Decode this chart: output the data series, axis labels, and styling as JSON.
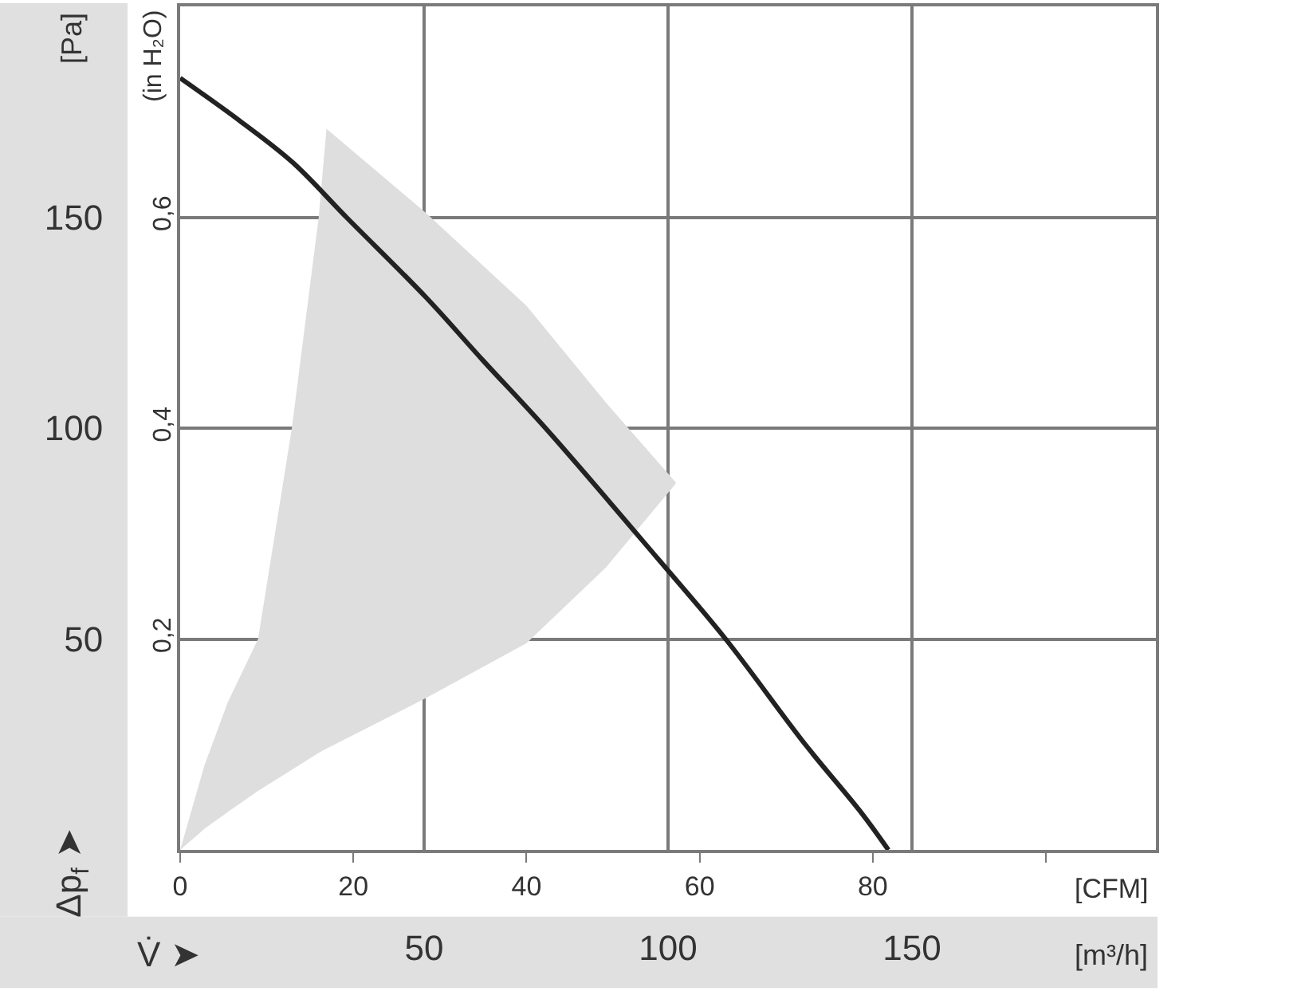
{
  "chart_data": {
    "type": "line",
    "xlabel": "[CFM]",
    "x2label": "[m³/h]",
    "ylabel": "[Pa]",
    "y2label": "(in H₂O)",
    "annotations": [
      "Δp$_{f}$ ➤",
      "V̇ ➤"
    ],
    "xlim": [
      0,
      112.7
    ],
    "xticks": [
      0,
      20,
      40,
      60,
      80,
      {
        "value": 100,
        "label": null
      }
    ],
    "x2lim": [
      0,
      200
    ],
    "x2ticks": [
      50,
      100,
      150
    ],
    "ylim": [
      0,
      200
    ],
    "yticks": [
      50,
      100,
      150
    ],
    "y2lim": [
      0,
      0.8
    ],
    "y2ticks": [
      {
        "value": 0.2,
        "label": "0,2"
      },
      {
        "value": 0.4,
        "label": "0,4"
      },
      {
        "value": 0.6,
        "label": "0,6"
      }
    ],
    "grid": true,
    "marker": "none",
    "series": [
      {
        "type": "line",
        "color": "#dedede",
        "x": [
          0,
          2.8,
          5.5,
          9,
          12.9,
          16,
          16.9,
          28.4,
          40,
          49.2,
          57.3
        ],
        "values": [
          null,
          null,
          null,
          null,
          null,
          null,
          null,
          null,
          null,
          null,
          null
        ],
        "lower": [
          0,
          5,
          9,
          14,
          19,
          23,
          24,
          36,
          49,
          67,
          87
        ],
        "upper": [
          0,
          20,
          35,
          50,
          100,
          150,
          171,
          151,
          129,
          106,
          87
        ]
      },
      {
        "type": "line",
        "color": "#222222",
        "line_style": "solid",
        "x": [
          0,
          6.8,
          13,
          19.2,
          28.4,
          35,
          42.2,
          55.2,
          63,
          72.2,
          78.6,
          81.8
        ],
        "values": [
          183,
          173,
          163,
          150,
          131,
          116,
          100,
          69,
          50,
          25,
          9,
          0
        ]
      }
    ]
  }
}
